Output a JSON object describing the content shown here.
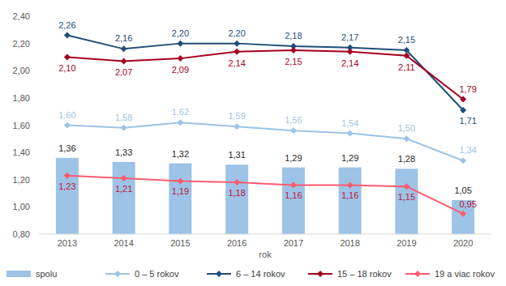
{
  "chart_data": {
    "type": "bar",
    "x_label": "rok",
    "categories": [
      "2013",
      "2014",
      "2015",
      "2016",
      "2017",
      "2018",
      "2019",
      "2020"
    ],
    "series": [
      {
        "name": "spolu",
        "type": "bar",
        "color": "#9dc3e6",
        "values": [
          1.36,
          1.33,
          1.32,
          1.31,
          1.29,
          1.29,
          1.28,
          1.05
        ],
        "value_labels": [
          "1,36",
          "1,33",
          "1,32",
          "1,31",
          "1,29",
          "1,29",
          "1,28",
          "1,05"
        ]
      },
      {
        "name": "0 – 5 rokov",
        "type": "line",
        "color": "#9dc3e6",
        "marker": "diamond",
        "values": [
          1.6,
          1.58,
          1.62,
          1.59,
          1.56,
          1.54,
          1.5,
          1.34
        ],
        "value_labels": [
          "1,60",
          "1,58",
          "1,62",
          "1,59",
          "1,56",
          "1,54",
          "1,50",
          "1,34"
        ]
      },
      {
        "name": "6 – 14 rokov",
        "type": "line",
        "color": "#1f4e79",
        "marker": "diamond",
        "values": [
          2.26,
          2.16,
          2.2,
          2.2,
          2.18,
          2.17,
          2.15,
          1.71
        ],
        "value_labels": [
          "2,26",
          "2,16",
          "2,20",
          "2,20",
          "2,18",
          "2,17",
          "2,15",
          "1,71"
        ]
      },
      {
        "name": "15 – 18 rokov",
        "type": "line",
        "color": "#a50021",
        "marker": "diamond",
        "values": [
          2.1,
          2.07,
          2.09,
          2.14,
          2.15,
          2.14,
          2.11,
          1.79
        ],
        "value_labels": [
          "2,10",
          "2,07",
          "2,09",
          "2,14",
          "2,15",
          "2,14",
          "2,11",
          "1,79"
        ]
      },
      {
        "name": "19 a viac rokov",
        "type": "line",
        "color": "#ff5b6e",
        "marker": "diamond",
        "values": [
          1.23,
          1.21,
          1.19,
          1.18,
          1.16,
          1.16,
          1.15,
          0.95
        ],
        "value_labels": [
          "1,23",
          "1,21",
          "1,19",
          "1,18",
          "1,16",
          "1,16",
          "1,15",
          "0,95"
        ]
      }
    ],
    "ylim": [
      0.8,
      2.4
    ],
    "yticks": [
      {
        "value": 0.8,
        "label": "0,80"
      },
      {
        "value": 1.0,
        "label": "1,00"
      },
      {
        "value": 1.2,
        "label": "1,20"
      },
      {
        "value": 1.4,
        "label": "1,40"
      },
      {
        "value": 1.6,
        "label": "1,60"
      },
      {
        "value": 1.8,
        "label": "1,80"
      },
      {
        "value": 2.0,
        "label": "2,00"
      },
      {
        "value": 2.2,
        "label": "2,20"
      },
      {
        "value": 2.4,
        "label": "2,40"
      }
    ],
    "grid": false,
    "legend": "bottom",
    "data_labels": true
  }
}
